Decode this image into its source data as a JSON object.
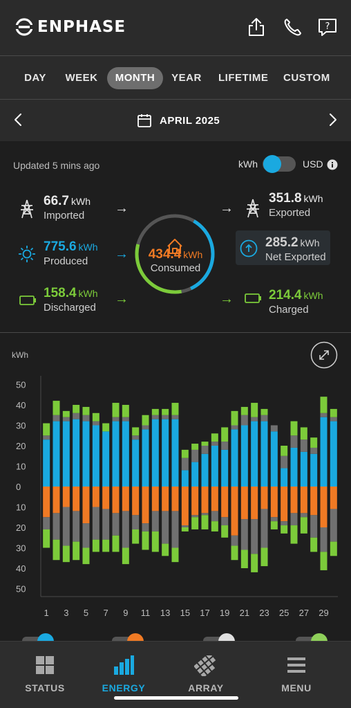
{
  "app": {
    "brand": "ENPHASE"
  },
  "header": {
    "share_icon": "share-icon",
    "phone_icon": "phone-icon",
    "help_icon": "help-icon"
  },
  "period_tabs": [
    {
      "label": "DAY",
      "active": false
    },
    {
      "label": "WEEK",
      "active": false
    },
    {
      "label": "MONTH",
      "active": true
    },
    {
      "label": "YEAR",
      "active": false
    },
    {
      "label": "LIFETIME",
      "active": false
    },
    {
      "label": "CUSTOM",
      "active": false
    }
  ],
  "date_nav": {
    "label": "APRIL 2025"
  },
  "summary": {
    "updated": "Updated 5 mins ago",
    "unit_left": "kWh",
    "unit_right": "USD",
    "imported": {
      "value": "66.7",
      "unit": "kWh",
      "label": "Imported"
    },
    "produced": {
      "value": "775.6",
      "unit": "kWh",
      "label": "Produced"
    },
    "discharged": {
      "value": "158.4",
      "unit": "kWh",
      "label": "Discharged"
    },
    "consumed": {
      "value": "434.4",
      "unit": "kWh",
      "label": "Consumed"
    },
    "exported": {
      "value": "351.8",
      "unit": "kWh",
      "label": "Exported"
    },
    "net_exported": {
      "value": "285.2",
      "unit": "kWh",
      "label": "Net Exported"
    },
    "charged": {
      "value": "214.4",
      "unit": "kWh",
      "label": "Charged"
    }
  },
  "colors": {
    "solar": "#1aa9e0",
    "consumption": "#f07a24",
    "battery": "#7ccb3a",
    "grid": "#707070"
  },
  "chart_data": {
    "type": "bar",
    "ylabel": "kWh",
    "ylim": [
      -50,
      50
    ],
    "ytick_labels": [
      "50",
      "40",
      "30",
      "20",
      "10",
      "0",
      "10",
      "20",
      "30",
      "40",
      "50"
    ],
    "xtick_labels": [
      "1",
      "3",
      "5",
      "7",
      "9",
      "11",
      "13",
      "15",
      "17",
      "19",
      "21",
      "23",
      "25",
      "27",
      "29"
    ],
    "x": [
      1,
      2,
      3,
      4,
      5,
      6,
      7,
      8,
      9,
      10,
      11,
      12,
      13,
      14,
      15,
      16,
      17,
      18,
      19,
      20,
      21,
      22,
      23,
      24,
      25,
      26,
      27,
      28,
      29,
      30
    ],
    "series": [
      {
        "name": "produced",
        "values": [
          23,
          32,
          32,
          33,
          32,
          30,
          27,
          32,
          32,
          23,
          28,
          33,
          33,
          33,
          8,
          12,
          16,
          20,
          18,
          28,
          30,
          32,
          32,
          27,
          9,
          19,
          17,
          16,
          34,
          32
        ]
      },
      {
        "name": "exported",
        "values": [
          2,
          3,
          2,
          3,
          3,
          2,
          0,
          2,
          2,
          2,
          2,
          2,
          2,
          2,
          6,
          6,
          4,
          2,
          4,
          2,
          5,
          2,
          3,
          3,
          6,
          6,
          6,
          3,
          2,
          2
        ]
      },
      {
        "name": "charged",
        "values": [
          6,
          7,
          3,
          4,
          4,
          4,
          4,
          7,
          6,
          4,
          5,
          3,
          3,
          6,
          4,
          3,
          2,
          4,
          7,
          7,
          4,
          7,
          3,
          0,
          5,
          7,
          6,
          5,
          8,
          4
        ]
      },
      {
        "name": "consumed",
        "values": [
          -15,
          -13,
          -10,
          -12,
          -18,
          -10,
          -11,
          -13,
          -12,
          -14,
          -18,
          -12,
          -12,
          -12,
          -19,
          -14,
          -13,
          -12,
          -15,
          -24,
          -16,
          -16,
          -11,
          -15,
          -17,
          -13,
          -13,
          -14,
          -20,
          -11
        ]
      },
      {
        "name": "imported",
        "values": [
          -6,
          -13,
          -19,
          -15,
          -12,
          -16,
          -15,
          -11,
          -18,
          -7,
          -4,
          -10,
          -16,
          -18,
          -1,
          -1,
          -1,
          -5,
          -4,
          -5,
          -15,
          -17,
          -19,
          -2,
          -2,
          -6,
          -2,
          -11,
          -12,
          -16
        ]
      },
      {
        "name": "discharged",
        "values": [
          -9,
          -10,
          -8,
          -9,
          -8,
          -6,
          -6,
          -8,
          -8,
          -7,
          -9,
          -10,
          -6,
          -7,
          -2,
          -6,
          -7,
          -5,
          -6,
          -7,
          -9,
          -9,
          -9,
          -4,
          -4,
          -9,
          -8,
          -7,
          -9,
          -7
        ]
      }
    ]
  },
  "bottom_nav": [
    {
      "label": "STATUS",
      "icon": "grid-icon",
      "active": false
    },
    {
      "label": "ENERGY",
      "icon": "bar-chart-icon",
      "active": true
    },
    {
      "label": "ARRAY",
      "icon": "solar-array-icon",
      "active": false
    },
    {
      "label": "MENU",
      "icon": "menu-icon",
      "active": false
    }
  ]
}
